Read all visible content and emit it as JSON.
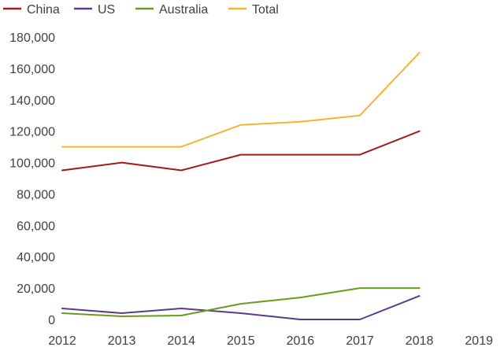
{
  "chart_data": {
    "type": "line",
    "title": "",
    "xlabel": "",
    "ylabel": "",
    "x": [
      "2012",
      "2013",
      "2014",
      "2015",
      "2016",
      "2017",
      "2018",
      "2019"
    ],
    "ylim": [
      0,
      180000
    ],
    "yticks": [
      "0",
      "20,000",
      "40,000",
      "60,000",
      "80,000",
      "100,000",
      "120,000",
      "140,000",
      "160,000",
      "180,000"
    ],
    "yticks_values": [
      0,
      20000,
      40000,
      60000,
      80000,
      100000,
      120000,
      140000,
      160000,
      180000
    ],
    "grid": false,
    "legend_position": "top-left",
    "series": [
      {
        "name": "China",
        "color": "#A31A1A",
        "values": [
          95000,
          100000,
          95000,
          105000,
          105000,
          105000,
          120000,
          null
        ]
      },
      {
        "name": "US",
        "color": "#5B3A8C",
        "values": [
          7000,
          4000,
          7000,
          4000,
          0,
          0,
          15000,
          null
        ]
      },
      {
        "name": "Australia",
        "color": "#6A9A1F",
        "values": [
          4000,
          2000,
          2500,
          10000,
          14000,
          20000,
          20000,
          null
        ]
      },
      {
        "name": "Total",
        "color": "#F5B335",
        "values": [
          110000,
          110000,
          110000,
          124000,
          126000,
          130000,
          170000,
          null
        ]
      }
    ]
  }
}
